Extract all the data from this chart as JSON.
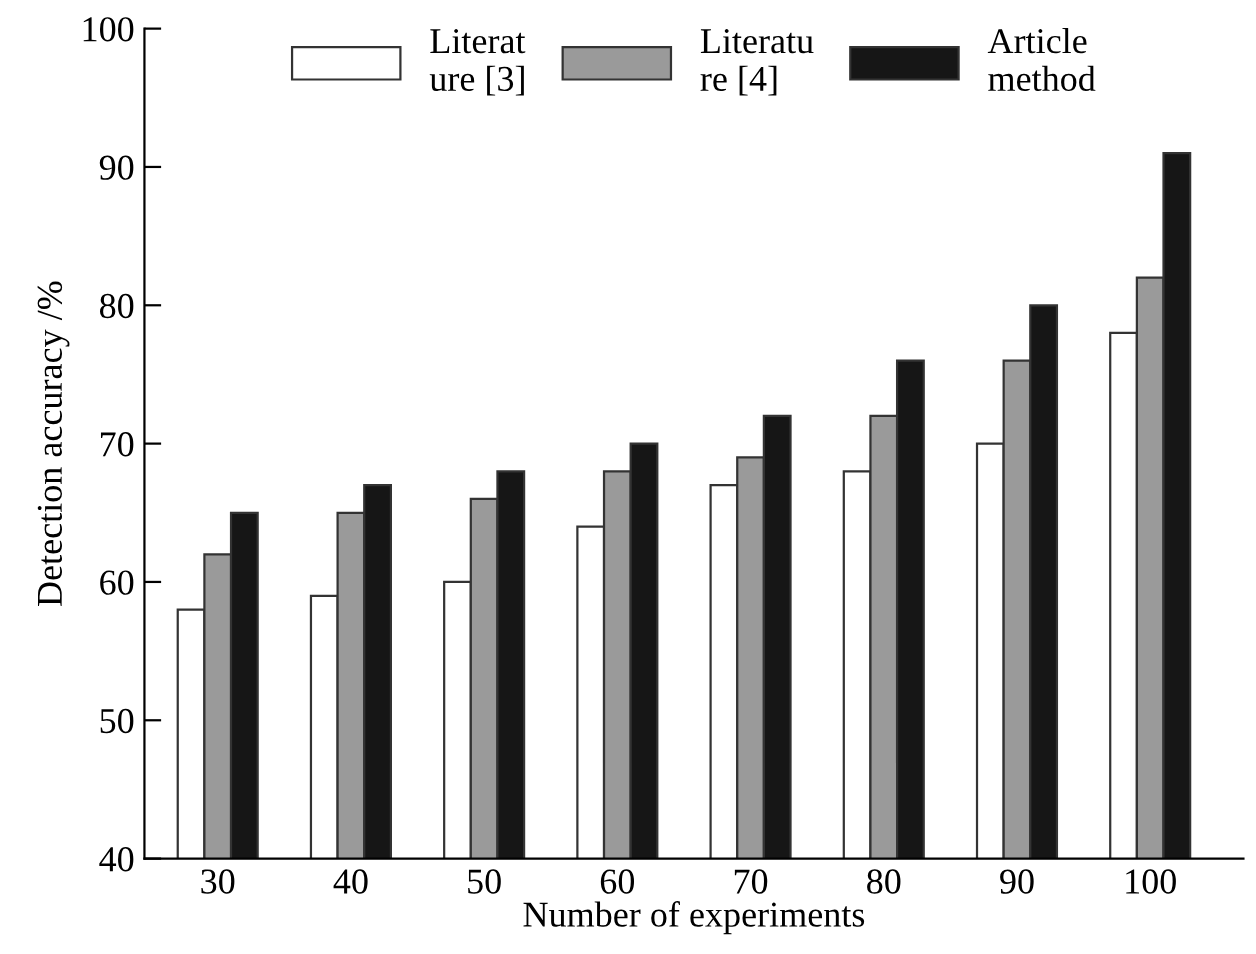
{
  "chart_data": {
    "type": "bar",
    "xlabel": "Number of experiments",
    "ylabel": "Detection accuracy /%",
    "categories": [
      "30",
      "40",
      "50",
      "60",
      "70",
      "80",
      "90",
      "100"
    ],
    "series": [
      {
        "name": "Literat\nure [3]",
        "color": "#ffffff",
        "values": [
          58,
          59,
          60,
          64,
          67,
          68,
          70,
          78
        ]
      },
      {
        "name": "Literatu\nre [4]",
        "color": "#9a9a9a",
        "values": [
          62,
          65,
          66,
          68,
          69,
          72,
          76,
          82
        ]
      },
      {
        "name": "Article\nmethod",
        "color": "#161616",
        "values": [
          65,
          67,
          68,
          70,
          72,
          76,
          80,
          91
        ]
      }
    ],
    "ylim": [
      40,
      100
    ],
    "yticks": [
      40,
      50,
      60,
      70,
      80,
      90,
      100
    ],
    "grid": false,
    "legend": "top"
  }
}
